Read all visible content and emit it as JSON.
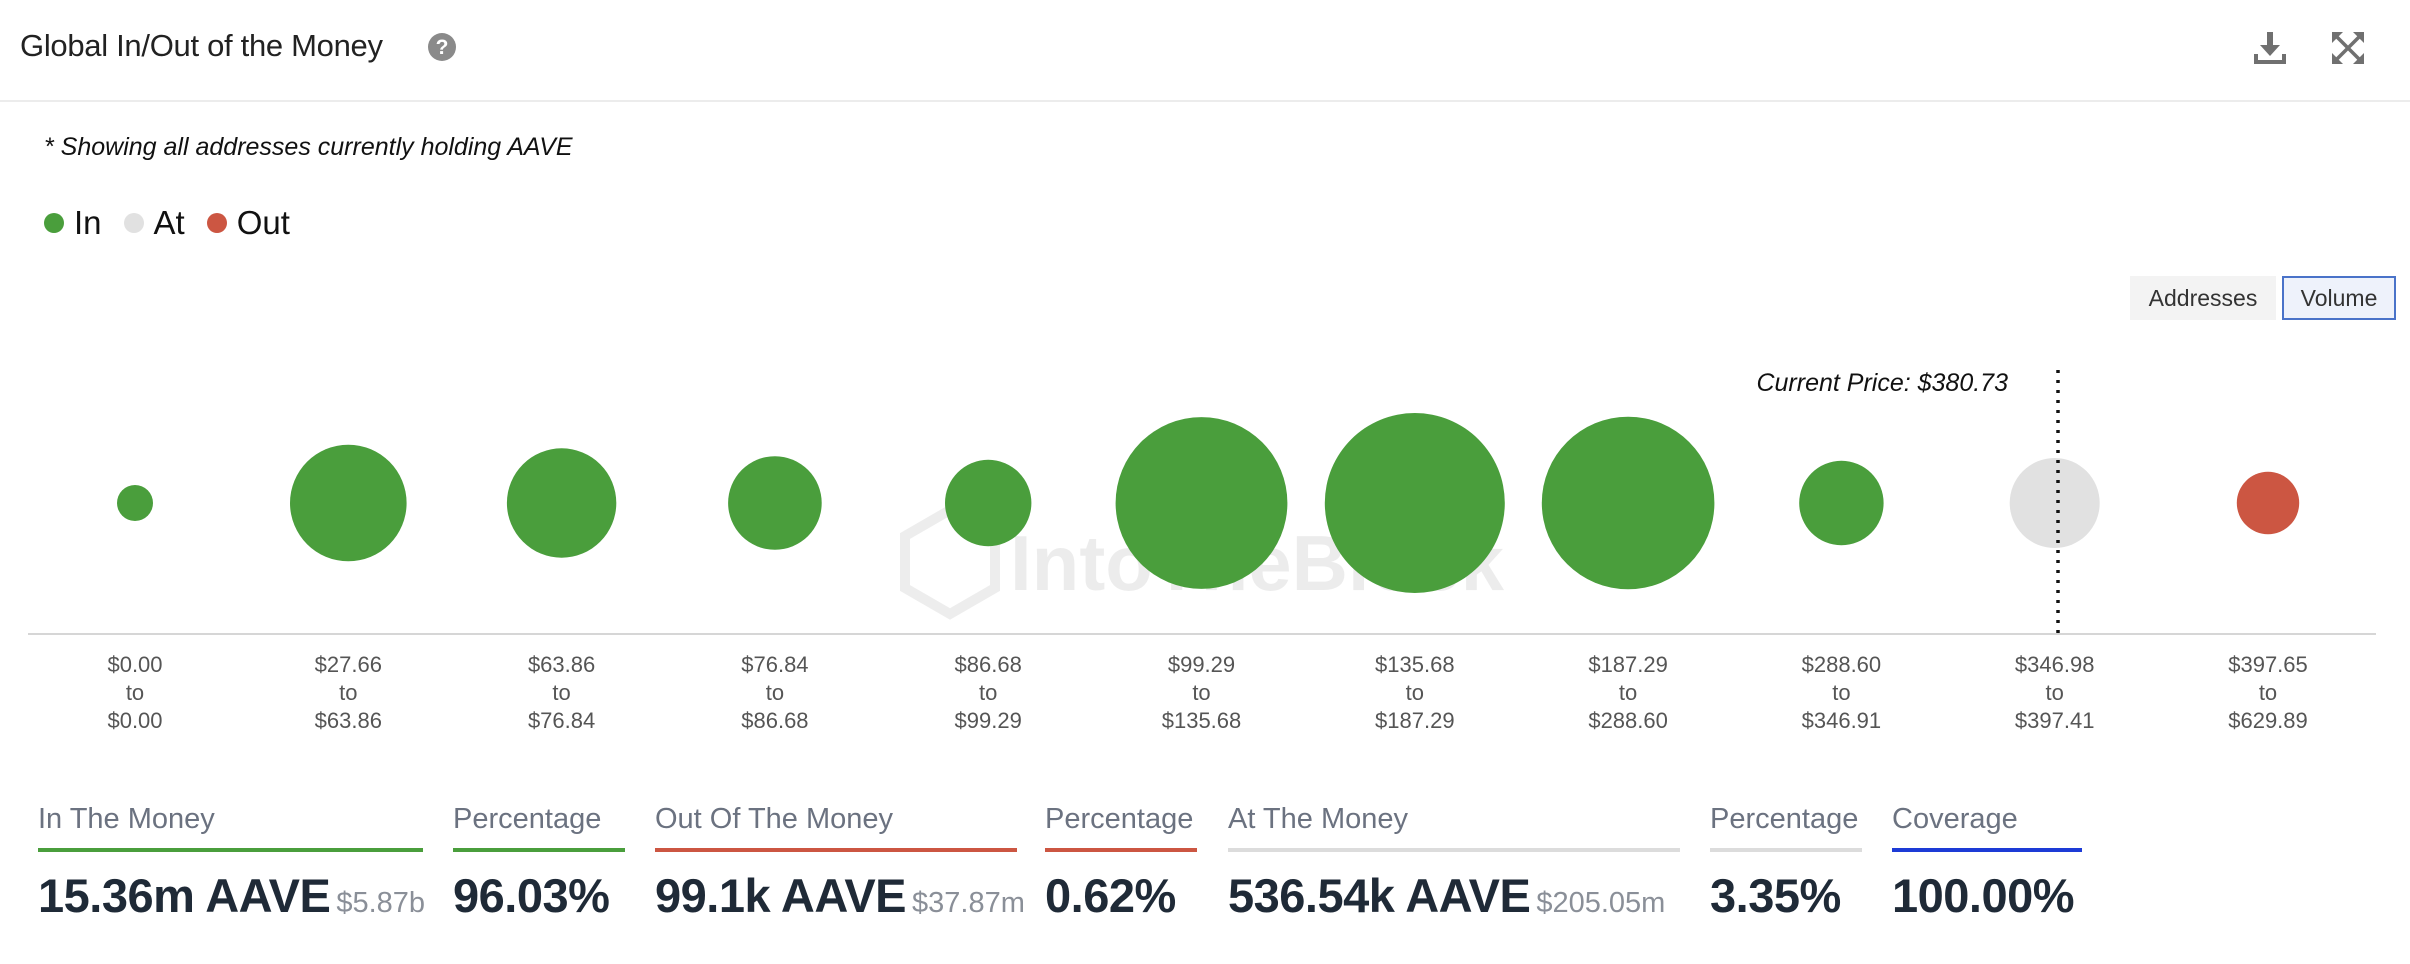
{
  "header": {
    "title": "Global In/Out of the Money",
    "help_icon": "question-circle-icon",
    "download_icon": "download-icon",
    "expand_icon": "expand-icon"
  },
  "note": "* Showing all addresses currently holding AAVE",
  "legend": [
    {
      "label": "In",
      "color": "#4a9e3c"
    },
    {
      "label": "At",
      "color": "#e1e1e1"
    },
    {
      "label": "Out",
      "color": "#cc5642"
    }
  ],
  "toggles": {
    "addresses": "Addresses",
    "volume": "Volume",
    "active": "Volume"
  },
  "watermark": "IntoTheBlock",
  "chart_data": {
    "type": "bubble",
    "current_price_label": "Current Price: $380.73",
    "current_price_between": [
      9,
      10
    ],
    "categories": [
      [
        "$0.00",
        "to",
        "$0.00"
      ],
      [
        "$27.66",
        "to",
        "$63.86"
      ],
      [
        "$63.86",
        "to",
        "$76.84"
      ],
      [
        "$76.84",
        "to",
        "$86.68"
      ],
      [
        "$86.68",
        "to",
        "$99.29"
      ],
      [
        "$99.29",
        "to",
        "$135.68"
      ],
      [
        "$135.68",
        "to",
        "$187.29"
      ],
      [
        "$187.29",
        "to",
        "$288.60"
      ],
      [
        "$288.60",
        "to",
        "$346.91"
      ],
      [
        "$346.98",
        "to",
        "$397.41"
      ],
      [
        "$397.65",
        "to",
        "$629.89"
      ]
    ],
    "status": [
      "In",
      "In",
      "In",
      "In",
      "In",
      "In",
      "In",
      "In",
      "In",
      "At",
      "Out"
    ],
    "relative_volume": [
      0.04,
      0.42,
      0.37,
      0.27,
      0.23,
      0.91,
      1.0,
      0.92,
      0.22,
      0.25,
      0.12
    ],
    "colors": {
      "In": "#4a9e3c",
      "At": "#e1e1e1",
      "Out": "#cc5642"
    }
  },
  "stats": [
    {
      "label": "In The Money",
      "value": "15.36m AAVE",
      "sub": "$5.87b",
      "color": "#4a9e3c"
    },
    {
      "label": "Percentage",
      "value": "96.03%",
      "sub": "",
      "color": "#4a9e3c"
    },
    {
      "label": "Out Of The Money",
      "value": "99.1k AAVE",
      "sub": "$37.87m",
      "color": "#cc5642"
    },
    {
      "label": "Percentage",
      "value": "0.62%",
      "sub": "",
      "color": "#cc5642"
    },
    {
      "label": "At The Money",
      "value": "536.54k AAVE",
      "sub": "$205.05m",
      "color": "#dcdcdc"
    },
    {
      "label": "Percentage",
      "value": "3.35%",
      "sub": "",
      "color": "#dcdcdc"
    },
    {
      "label": "Coverage",
      "value": "100.00%",
      "sub": "",
      "color": "#1d3bd6"
    }
  ]
}
